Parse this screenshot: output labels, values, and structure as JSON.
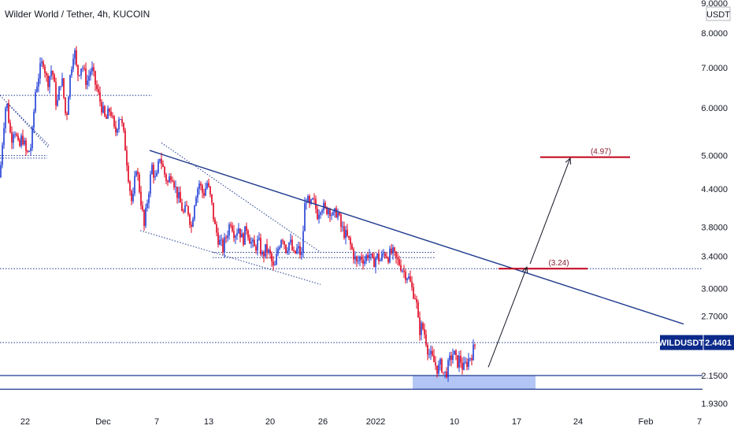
{
  "chart_data": {
    "type": "candlestick",
    "title": "Wilder World / Tether, 4h, KUCOIN",
    "currency_label": "USDT",
    "scale": "log",
    "price_ticks": [
      "9.0000",
      "8.0000",
      "7.0000",
      "6.0000",
      "5.0000",
      "4.4000",
      "3.8000",
      "3.4000",
      "3.0000",
      "2.7000",
      "2.4401",
      "2.1500",
      "1.9300"
    ],
    "x_ticks": [
      "22",
      "Dec",
      "7",
      "13",
      "20",
      "26",
      "2022",
      "10",
      "17",
      "24",
      "Feb",
      "7"
    ],
    "last_price": {
      "symbol": "WILDUSDT",
      "value": 2.4401,
      "color": "#0b2a8a"
    },
    "colors": {
      "up": "#1e3bd6",
      "down": "#e0001b",
      "line": "#1f3a8f",
      "target": "#c0001a",
      "support_zone": "#b3c5f5"
    },
    "price_path": [
      [
        0,
        4.6
      ],
      [
        4,
        5.5
      ],
      [
        8,
        6.2
      ],
      [
        14,
        5.3
      ],
      [
        18,
        5.6
      ],
      [
        24,
        5.1
      ],
      [
        28,
        5.4
      ],
      [
        34,
        5.0
      ],
      [
        40,
        5.2
      ],
      [
        45,
        6.4
      ],
      [
        50,
        6.9
      ],
      [
        55,
        7.2
      ],
      [
        60,
        6.6
      ],
      [
        66,
        7.0
      ],
      [
        72,
        6.0
      ],
      [
        78,
        6.8
      ],
      [
        84,
        5.7
      ],
      [
        88,
        6.6
      ],
      [
        94,
        7.6
      ],
      [
        98,
        6.8
      ],
      [
        104,
        7.1
      ],
      [
        110,
        6.6
      ],
      [
        116,
        7.0
      ],
      [
        122,
        6.5
      ],
      [
        128,
        6.1
      ],
      [
        134,
        5.7
      ],
      [
        140,
        6.0
      ],
      [
        146,
        5.4
      ],
      [
        152,
        5.9
      ],
      [
        158,
        5.3
      ],
      [
        164,
        4.5
      ],
      [
        168,
        4.1
      ],
      [
        173,
        4.8
      ],
      [
        178,
        4.3
      ],
      [
        183,
        3.8
      ],
      [
        188,
        4.3
      ],
      [
        193,
        4.8
      ],
      [
        198,
        4.5
      ],
      [
        203,
        5.0
      ],
      [
        208,
        4.7
      ],
      [
        213,
        4.5
      ],
      [
        218,
        4.7
      ],
      [
        223,
        4.4
      ],
      [
        228,
        4.2
      ],
      [
        233,
        4.0
      ],
      [
        238,
        4.1
      ],
      [
        243,
        3.8
      ],
      [
        248,
        4.3
      ],
      [
        253,
        4.5
      ],
      [
        258,
        4.3
      ],
      [
        263,
        4.5
      ],
      [
        268,
        4.2
      ],
      [
        273,
        3.8
      ],
      [
        278,
        3.6
      ],
      [
        283,
        3.5
      ],
      [
        288,
        3.7
      ],
      [
        293,
        3.9
      ],
      [
        298,
        3.7
      ],
      [
        303,
        3.8
      ],
      [
        308,
        3.6
      ],
      [
        313,
        3.8
      ],
      [
        318,
        3.6
      ],
      [
        323,
        3.5
      ],
      [
        328,
        3.6
      ],
      [
        333,
        3.4
      ],
      [
        338,
        3.5
      ],
      [
        343,
        3.4
      ],
      [
        348,
        3.2
      ],
      [
        353,
        3.5
      ],
      [
        358,
        3.7
      ],
      [
        363,
        3.5
      ],
      [
        368,
        3.6
      ],
      [
        373,
        3.4
      ],
      [
        378,
        3.5
      ],
      [
        383,
        3.4
      ],
      [
        388,
        4.3
      ],
      [
        393,
        4.1
      ],
      [
        398,
        4.2
      ],
      [
        403,
        4.0
      ],
      [
        408,
        4.15
      ],
      [
        413,
        4.05
      ],
      [
        418,
        4.1
      ],
      [
        423,
        3.95
      ],
      [
        428,
        4.05
      ],
      [
        433,
        3.8
      ],
      [
        438,
        3.7
      ],
      [
        443,
        3.6
      ],
      [
        448,
        3.45
      ],
      [
        453,
        3.3
      ],
      [
        458,
        3.4
      ],
      [
        463,
        3.35
      ],
      [
        468,
        3.45
      ],
      [
        473,
        3.3
      ],
      [
        478,
        3.4
      ],
      [
        483,
        3.35
      ],
      [
        488,
        3.45
      ],
      [
        493,
        3.4
      ],
      [
        498,
        3.45
      ],
      [
        503,
        3.35
      ],
      [
        508,
        3.3
      ],
      [
        513,
        3.2
      ],
      [
        518,
        3.15
      ],
      [
        523,
        3.0
      ],
      [
        528,
        2.9
      ],
      [
        532,
        2.55
      ],
      [
        536,
        2.6
      ],
      [
        540,
        2.5
      ],
      [
        544,
        2.35
      ],
      [
        548,
        2.3
      ],
      [
        552,
        2.25
      ],
      [
        556,
        2.2
      ],
      [
        560,
        2.25
      ],
      [
        564,
        2.15
      ],
      [
        568,
        2.2
      ],
      [
        572,
        2.3
      ],
      [
        576,
        2.35
      ],
      [
        580,
        2.25
      ],
      [
        584,
        2.3
      ],
      [
        588,
        2.2
      ],
      [
        592,
        2.25
      ],
      [
        596,
        2.3
      ],
      [
        600,
        2.35
      ],
      [
        604,
        2.4401
      ]
    ],
    "trendline": {
      "from": [
        190,
        5.1
      ],
      "to": [
        868,
        2.62
      ]
    },
    "channel": [
      {
        "from": [
          205,
          5.25
        ],
        "to": [
          407,
          3.45
        ]
      },
      {
        "from": [
          178,
          3.75
        ],
        "to": [
          407,
          3.05
        ]
      }
    ],
    "early_channel": [
      {
        "from": [
          0,
          6.3
        ],
        "to": [
          62,
          5.2
        ]
      },
      {
        "from": [
          10,
          6.1
        ],
        "to": [
          62,
          5.15
        ]
      }
    ],
    "horizontal_levels": [
      {
        "price": 6.3,
        "x0": 0,
        "x1": 193,
        "style": "dotted"
      },
      {
        "price": 5.0,
        "x0": 0,
        "x1": 60,
        "style": "dotted"
      },
      {
        "price": 4.95,
        "x0": 0,
        "x1": 60,
        "style": "dotted"
      },
      {
        "price": 3.45,
        "x0": 270,
        "x1": 552,
        "style": "dotted"
      },
      {
        "price": 3.38,
        "x0": 270,
        "x1": 552,
        "style": "dotted"
      },
      {
        "price": 3.24,
        "x0": 0,
        "x1": 892,
        "style": "dotted"
      },
      {
        "price": 2.4401,
        "x0": 0,
        "x1": 892,
        "style": "dotted"
      },
      {
        "price": 2.15,
        "x0": 0,
        "x1": 892,
        "style": "solid"
      },
      {
        "price": 2.04,
        "x0": 0,
        "x1": 892,
        "style": "solid"
      }
    ],
    "support_zone": {
      "x0": 524,
      "x1": 680,
      "p_top": 2.15,
      "p_bot": 2.04
    },
    "targets": [
      {
        "label": "(3.24)",
        "price": 3.24,
        "x0": 633,
        "x1": 746
      },
      {
        "label": "(4.97)",
        "price": 4.97,
        "x0": 686,
        "x1": 800
      }
    ],
    "arrows": [
      {
        "from": [
          620,
          2.22
        ],
        "to": [
          669,
          3.26
        ]
      },
      {
        "from": [
          673,
          3.3
        ],
        "to": [
          724,
          4.95
        ]
      }
    ]
  }
}
